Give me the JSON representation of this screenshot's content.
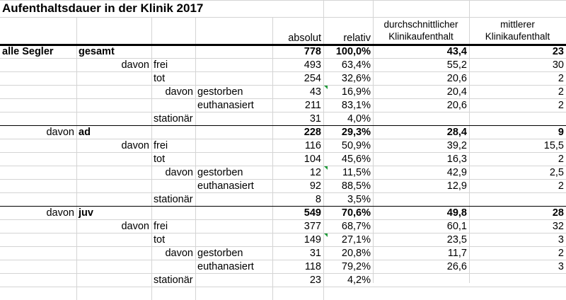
{
  "title": "Aufenthaltsdauer in der Klinik 2017",
  "headers": {
    "absolut": "absolut",
    "relativ": "relativ",
    "avg_line1": "durchschnittlicher",
    "avg_line2": "Klinikaufenthalt",
    "med_line1": "mittlerer",
    "med_line2": "Klinikaufenthalt"
  },
  "rows": [
    {
      "c0": "alle Segler",
      "c1": "gesamt",
      "c2": "",
      "c3": "",
      "abs": "778",
      "rel": "100,0%",
      "avg": "43,4",
      "med": "23",
      "bold": true,
      "mark": false
    },
    {
      "c0": "",
      "c1": "davon",
      "c2": "frei",
      "c3": "",
      "abs": "493",
      "rel": "63,4%",
      "avg": "55,2",
      "med": "30",
      "bold": false,
      "mark": false
    },
    {
      "c0": "",
      "c1": "",
      "c2": "tot",
      "c3": "",
      "abs": "254",
      "rel": "32,6%",
      "avg": "20,6",
      "med": "2",
      "bold": false,
      "mark": false
    },
    {
      "c0": "",
      "c1": "",
      "c2": "davon",
      "c3": "gestorben",
      "abs": "43",
      "rel": "16,9%",
      "avg": "20,4",
      "med": "2",
      "bold": false,
      "mark": true
    },
    {
      "c0": "",
      "c1": "",
      "c2": "",
      "c3": "euthanasiert",
      "abs": "211",
      "rel": "83,1%",
      "avg": "20,6",
      "med": "2",
      "bold": false,
      "mark": false
    },
    {
      "c0": "",
      "c1": "",
      "c2": "stationär",
      "c3": "",
      "abs": "31",
      "rel": "4,0%",
      "avg": "",
      "med": "",
      "bold": false,
      "mark": false
    },
    {
      "c0": "davon",
      "c1": "ad",
      "c2": "",
      "c3": "",
      "abs": "228",
      "rel": "29,3%",
      "avg": "28,4",
      "med": "9",
      "bold": true,
      "mark": false
    },
    {
      "c0": "",
      "c1": "davon",
      "c2": "frei",
      "c3": "",
      "abs": "116",
      "rel": "50,9%",
      "avg": "39,2",
      "med": "15,5",
      "bold": false,
      "mark": false
    },
    {
      "c0": "",
      "c1": "",
      "c2": "tot",
      "c3": "",
      "abs": "104",
      "rel": "45,6%",
      "avg": "16,3",
      "med": "2",
      "bold": false,
      "mark": false
    },
    {
      "c0": "",
      "c1": "",
      "c2": "davon",
      "c3": "gestorben",
      "abs": "12",
      "rel": "11,5%",
      "avg": "42,9",
      "med": "2,5",
      "bold": false,
      "mark": true
    },
    {
      "c0": "",
      "c1": "",
      "c2": "",
      "c3": "euthanasiert",
      "abs": "92",
      "rel": "88,5%",
      "avg": "12,9",
      "med": "2",
      "bold": false,
      "mark": false
    },
    {
      "c0": "",
      "c1": "",
      "c2": "stationär",
      "c3": "",
      "abs": "8",
      "rel": "3,5%",
      "avg": "",
      "med": "",
      "bold": false,
      "mark": false
    },
    {
      "c0": "davon",
      "c1": "juv",
      "c2": "",
      "c3": "",
      "abs": "549",
      "rel": "70,6%",
      "avg": "49,8",
      "med": "28",
      "bold": true,
      "mark": false
    },
    {
      "c0": "",
      "c1": "davon",
      "c2": "frei",
      "c3": "",
      "abs": "377",
      "rel": "68,7%",
      "avg": "60,1",
      "med": "32",
      "bold": false,
      "mark": false
    },
    {
      "c0": "",
      "c1": "",
      "c2": "tot",
      "c3": "",
      "abs": "149",
      "rel": "27,1%",
      "avg": "23,5",
      "med": "3",
      "bold": false,
      "mark": true
    },
    {
      "c0": "",
      "c1": "",
      "c2": "davon",
      "c3": "gestorben",
      "abs": "31",
      "rel": "20,8%",
      "avg": "11,7",
      "med": "2",
      "bold": false,
      "mark": false
    },
    {
      "c0": "",
      "c1": "",
      "c2": "",
      "c3": "euthanasiert",
      "abs": "118",
      "rel": "79,2%",
      "avg": "26,6",
      "med": "3",
      "bold": false,
      "mark": false
    },
    {
      "c0": "",
      "c1": "",
      "c2": "stationär",
      "c3": "",
      "abs": "23",
      "rel": "4,2%",
      "avg": "",
      "med": "",
      "bold": false,
      "mark": false
    }
  ]
}
